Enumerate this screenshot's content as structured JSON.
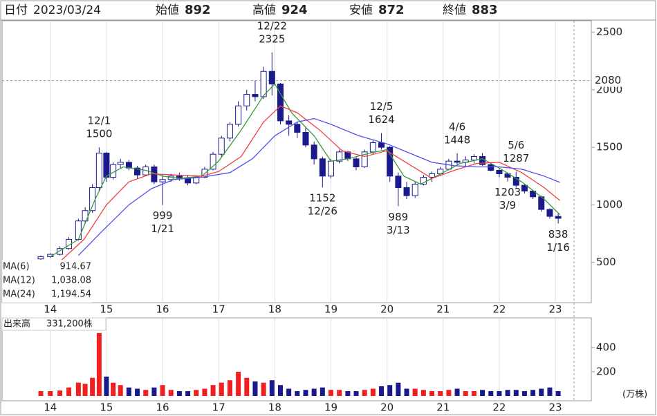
{
  "header": {
    "date_label": "日付",
    "date": "2023/03/24",
    "items": [
      {
        "label": "始値",
        "value": 892,
        "color": "#000000"
      },
      {
        "label": "高値",
        "value": 924,
        "color": "#e00000"
      },
      {
        "label": "安値",
        "value": 872,
        "color": "#008000"
      },
      {
        "label": "終値",
        "value": 883,
        "color": "#000000"
      }
    ]
  },
  "chart_data": [
    {
      "type": "candlestick",
      "up_color": "#ffffff",
      "down_color": "#1a1a8c",
      "edge_color": "#1a1a8c",
      "xlim": [
        2013.14,
        2023.64
      ],
      "xticks": [
        {
          "value": 2014,
          "label": "14"
        },
        {
          "value": 2015,
          "label": "15"
        },
        {
          "value": 2016,
          "label": "16"
        },
        {
          "value": 2017,
          "label": "17"
        },
        {
          "value": 2018,
          "label": "18"
        },
        {
          "value": 2019,
          "label": "19"
        },
        {
          "value": 2020,
          "label": "20"
        },
        {
          "value": 2021,
          "label": "21"
        },
        {
          "value": 2022,
          "label": "22"
        },
        {
          "value": 2023,
          "label": "23"
        }
      ],
      "ylim": [
        150,
        2600
      ],
      "yticks": [
        500,
        1000,
        1500,
        2000,
        2500
      ],
      "reference_line": {
        "value": 2080,
        "color": "#e05010"
      },
      "x": [
        2013.83,
        2014.0,
        2014.17,
        2014.33,
        2014.5,
        2014.62,
        2014.75,
        2014.87,
        2015.0,
        2015.12,
        2015.25,
        2015.4,
        2015.55,
        2015.7,
        2015.85,
        2016.0,
        2016.15,
        2016.3,
        2016.45,
        2016.6,
        2016.75,
        2016.9,
        2017.05,
        2017.2,
        2017.35,
        2017.5,
        2017.65,
        2017.8,
        2017.95,
        2018.1,
        2018.25,
        2018.4,
        2018.55,
        2018.7,
        2018.85,
        2019.0,
        2019.15,
        2019.3,
        2019.45,
        2019.6,
        2019.75,
        2019.9,
        2020.05,
        2020.2,
        2020.35,
        2020.5,
        2020.65,
        2020.8,
        2020.95,
        2021.1,
        2021.25,
        2021.4,
        2021.55,
        2021.7,
        2021.85,
        2022.0,
        2022.15,
        2022.3,
        2022.45,
        2022.6,
        2022.75,
        2022.9,
        2023.05
      ],
      "open": [
        530,
        550,
        570,
        620,
        700,
        860,
        950,
        1150,
        1450,
        1240,
        1350,
        1370,
        1320,
        1260,
        1330,
        1200,
        1220,
        1250,
        1230,
        1190,
        1240,
        1310,
        1440,
        1580,
        1700,
        1860,
        1960,
        1940,
        2160,
        2050,
        1730,
        1700,
        1630,
        1520,
        1400,
        1250,
        1380,
        1460,
        1400,
        1330,
        1460,
        1540,
        1500,
        1250,
        1150,
        1080,
        1180,
        1240,
        1270,
        1310,
        1380,
        1370,
        1390,
        1420,
        1350,
        1300,
        1270,
        1240,
        1170,
        1120,
        1070,
        960,
        900
      ],
      "high": [
        560,
        580,
        640,
        720,
        880,
        980,
        1180,
        1500,
        1460,
        1370,
        1400,
        1390,
        1340,
        1350,
        1350,
        1260,
        1270,
        1280,
        1260,
        1250,
        1330,
        1460,
        1600,
        1720,
        1900,
        2000,
        2080,
        2200,
        2325,
        2060,
        1780,
        1720,
        1680,
        1550,
        1420,
        1400,
        1480,
        1470,
        1420,
        1480,
        1560,
        1624,
        1510,
        1280,
        1200,
        1200,
        1260,
        1290,
        1330,
        1400,
        1448,
        1420,
        1440,
        1450,
        1370,
        1320,
        1280,
        1287,
        1180,
        1130,
        1080,
        970,
        924
      ],
      "low": [
        520,
        540,
        560,
        610,
        690,
        840,
        930,
        1120,
        1200,
        1220,
        1320,
        1300,
        1230,
        1250,
        1180,
        999,
        1200,
        1210,
        1170,
        1180,
        1230,
        1300,
        1420,
        1550,
        1680,
        1820,
        1900,
        1920,
        1950,
        1700,
        1600,
        1580,
        1500,
        1350,
        1152,
        1230,
        1360,
        1380,
        1300,
        1320,
        1440,
        1480,
        1200,
        989,
        1050,
        1060,
        1170,
        1200,
        1250,
        1300,
        1350,
        1330,
        1360,
        1340,
        1290,
        1240,
        1203,
        1150,
        1100,
        1050,
        940,
        880,
        838
      ],
      "close": [
        550,
        570,
        620,
        700,
        860,
        950,
        1150,
        1450,
        1240,
        1350,
        1370,
        1320,
        1260,
        1330,
        1200,
        1220,
        1250,
        1230,
        1190,
        1240,
        1310,
        1440,
        1580,
        1700,
        1860,
        1960,
        1940,
        2160,
        2050,
        1730,
        1700,
        1630,
        1520,
        1400,
        1250,
        1380,
        1460,
        1400,
        1330,
        1460,
        1540,
        1500,
        1250,
        1150,
        1080,
        1180,
        1240,
        1270,
        1310,
        1380,
        1370,
        1390,
        1420,
        1350,
        1300,
        1270,
        1240,
        1170,
        1120,
        1070,
        960,
        900,
        883
      ],
      "moving_averages": [
        {
          "name": "MA(6)",
          "legend_value": "914.67",
          "color": "#3a9a3a",
          "x": [
            2014.0,
            2014.5,
            2014.8,
            2015.0,
            2015.3,
            2015.7,
            2016.0,
            2016.3,
            2016.7,
            2017.0,
            2017.4,
            2017.8,
            2018.0,
            2018.3,
            2018.7,
            2019.0,
            2019.3,
            2019.7,
            2020.0,
            2020.3,
            2020.6,
            2021.0,
            2021.3,
            2021.7,
            2022.0,
            2022.4,
            2022.8,
            2023.08
          ],
          "values": [
            550,
            700,
            1050,
            1250,
            1330,
            1300,
            1250,
            1230,
            1250,
            1380,
            1650,
            1950,
            2050,
            1800,
            1600,
            1380,
            1400,
            1450,
            1480,
            1250,
            1180,
            1280,
            1360,
            1400,
            1320,
            1200,
            1050,
            915
          ]
        },
        {
          "name": "MA(12)",
          "legend_value": "1,038.08",
          "color": "#f04040",
          "x": [
            2014.2,
            2014.6,
            2015.0,
            2015.4,
            2015.8,
            2016.2,
            2016.7,
            2017.0,
            2017.4,
            2017.8,
            2018.1,
            2018.4,
            2018.8,
            2019.2,
            2019.6,
            2020.0,
            2020.4,
            2020.8,
            2021.2,
            2021.6,
            2022.0,
            2022.4,
            2022.8,
            2023.08
          ],
          "values": [
            520,
            700,
            1000,
            1200,
            1270,
            1260,
            1250,
            1290,
            1420,
            1720,
            1860,
            1800,
            1650,
            1470,
            1420,
            1470,
            1350,
            1230,
            1300,
            1360,
            1370,
            1280,
            1150,
            1038
          ]
        },
        {
          "name": "MA(24)",
          "legend_value": "1,194.54",
          "color": "#5050f0",
          "x": [
            2014.5,
            2014.9,
            2015.4,
            2015.8,
            2016.2,
            2016.7,
            2017.2,
            2017.6,
            2018.0,
            2018.4,
            2018.7,
            2019.0,
            2019.5,
            2020.0,
            2020.4,
            2020.8,
            2021.2,
            2021.6,
            2022.0,
            2022.4,
            2022.8,
            2023.08
          ],
          "values": [
            560,
            760,
            1000,
            1140,
            1220,
            1240,
            1280,
            1400,
            1600,
            1720,
            1750,
            1700,
            1600,
            1530,
            1450,
            1370,
            1340,
            1330,
            1330,
            1310,
            1250,
            1195
          ]
        }
      ],
      "annotations": [
        {
          "x": 2014.87,
          "date": "12/1",
          "price": 1500,
          "kind": "high"
        },
        {
          "x": 2017.95,
          "date": "12/22",
          "price": 2325,
          "kind": "high"
        },
        {
          "x": 2016.0,
          "date": "1/21",
          "price": 999,
          "kind": "low"
        },
        {
          "x": 2018.85,
          "date": "12/26",
          "price": 1152,
          "kind": "low"
        },
        {
          "x": 2019.9,
          "date": "12/5",
          "price": 1624,
          "kind": "high"
        },
        {
          "x": 2020.2,
          "date": "3/13",
          "price": 989,
          "kind": "low"
        },
        {
          "x": 2021.25,
          "date": "4/6",
          "price": 1448,
          "kind": "high"
        },
        {
          "x": 2022.3,
          "date": "5/6",
          "price": 1287,
          "kind": "high"
        },
        {
          "x": 2022.15,
          "date": "3/9",
          "price": 1203,
          "kind": "low"
        },
        {
          "x": 2023.05,
          "date": "1/16",
          "price": 838,
          "kind": "low"
        }
      ]
    },
    {
      "type": "bar",
      "title": "出来高",
      "latest": "331,200株",
      "unit": "(万株)",
      "up_color": "#f02020",
      "down_color": "#1a1a8c",
      "xlim": [
        2013.14,
        2023.64
      ],
      "xticks": [
        {
          "value": 2014,
          "label": "14"
        },
        {
          "value": 2015,
          "label": "15"
        },
        {
          "value": 2016,
          "label": "16"
        },
        {
          "value": 2017,
          "label": "17"
        },
        {
          "value": 2018,
          "label": "18"
        },
        {
          "value": 2019,
          "label": "19"
        },
        {
          "value": 2020,
          "label": "20"
        },
        {
          "value": 2021,
          "label": "21"
        },
        {
          "value": 2022,
          "label": "22"
        },
        {
          "value": 2023,
          "label": "23"
        }
      ],
      "ylim": [
        -40,
        645
      ],
      "yticks": [
        200,
        400
      ],
      "x": [
        2013.83,
        2014.0,
        2014.17,
        2014.33,
        2014.5,
        2014.62,
        2014.75,
        2014.87,
        2015.0,
        2015.12,
        2015.25,
        2015.4,
        2015.55,
        2015.7,
        2015.85,
        2016.0,
        2016.15,
        2016.3,
        2016.45,
        2016.6,
        2016.75,
        2016.9,
        2017.05,
        2017.2,
        2017.35,
        2017.5,
        2017.65,
        2017.8,
        2017.95,
        2018.1,
        2018.25,
        2018.4,
        2018.55,
        2018.7,
        2018.85,
        2019.0,
        2019.15,
        2019.3,
        2019.45,
        2019.6,
        2019.75,
        2019.9,
        2020.05,
        2020.2,
        2020.35,
        2020.5,
        2020.65,
        2020.8,
        2020.95,
        2021.1,
        2021.25,
        2021.4,
        2021.55,
        2021.7,
        2021.85,
        2022.0,
        2022.15,
        2022.3,
        2022.45,
        2022.6,
        2022.75,
        2022.9,
        2023.05
      ],
      "values": [
        40,
        40,
        45,
        70,
        110,
        100,
        150,
        520,
        160,
        110,
        90,
        70,
        60,
        50,
        70,
        90,
        50,
        40,
        40,
        50,
        60,
        90,
        110,
        130,
        200,
        150,
        120,
        110,
        130,
        90,
        60,
        40,
        50,
        60,
        70,
        50,
        50,
        40,
        40,
        50,
        60,
        80,
        90,
        110,
        60,
        60,
        50,
        40,
        40,
        50,
        60,
        40,
        40,
        50,
        40,
        40,
        50,
        50,
        40,
        50,
        60,
        70,
        40
      ]
    }
  ]
}
